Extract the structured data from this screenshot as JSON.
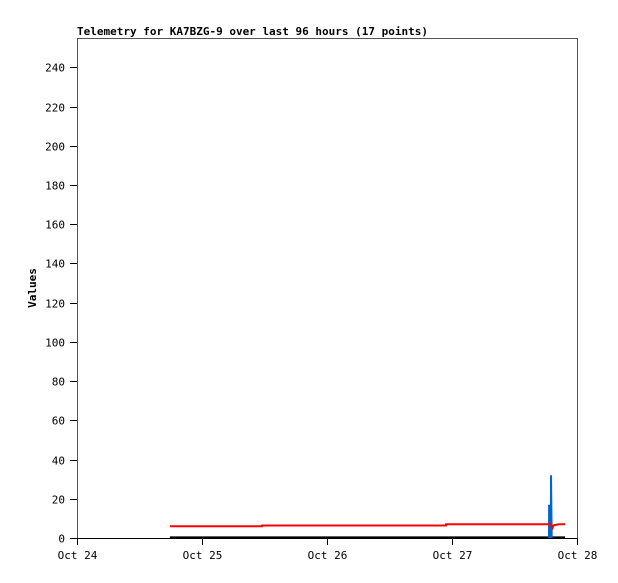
{
  "chart_data": {
    "type": "line",
    "title": "Telemetry for KA7BZG-9 over last 96 hours (17 points)",
    "xlabel": "",
    "ylabel": "Values",
    "xlim": [
      "Oct 24 00:00",
      "Oct 28 00:00"
    ],
    "ylim": [
      0,
      255
    ],
    "x_ticks": [
      "Oct 24",
      "Oct 25",
      "Oct 26",
      "Oct 27",
      "Oct 28"
    ],
    "y_ticks": [
      0,
      20,
      40,
      60,
      80,
      100,
      120,
      140,
      160,
      180,
      200,
      220,
      240
    ],
    "grid": false,
    "series": [
      {
        "color": "#ff0000",
        "points": [
          [
            "Oct 24 17:50",
            6.0
          ],
          [
            "Oct 25 03:00",
            6.0
          ],
          [
            "Oct 25 11:30",
            6.0
          ],
          [
            "Oct 25 11:31",
            6.4
          ],
          [
            "Oct 25 22:00",
            6.4
          ],
          [
            "Oct 26 08:00",
            6.4
          ],
          [
            "Oct 26 15:00",
            6.4
          ],
          [
            "Oct 26 22:50",
            6.4
          ],
          [
            "Oct 26 22:51",
            7.0
          ],
          [
            "Oct 27 05:00",
            7.0
          ],
          [
            "Oct 27 12:00",
            7.0
          ],
          [
            "Oct 27 18:38",
            7.0
          ],
          [
            "Oct 27 19:01",
            7.0
          ],
          [
            "Oct 27 19:15",
            5.0
          ],
          [
            "Oct 27 19:30",
            6.5
          ],
          [
            "Oct 27 20:30",
            7.0
          ],
          [
            "Oct 27 21:42",
            7.0
          ]
        ]
      },
      {
        "color": "#0066cc",
        "points": [
          [
            "Oct 27 18:38",
            0
          ],
          [
            "Oct 27 18:39",
            17
          ],
          [
            "Oct 27 18:50",
            0
          ],
          [
            "Oct 27 18:58",
            0
          ],
          [
            "Oct 27 19:00",
            32
          ],
          [
            "Oct 27 19:08",
            0
          ]
        ]
      },
      {
        "color": "#000000",
        "points": [
          [
            "Oct 24 17:50",
            0.3
          ],
          [
            "Oct 27 21:42",
            0.3
          ]
        ]
      }
    ]
  }
}
